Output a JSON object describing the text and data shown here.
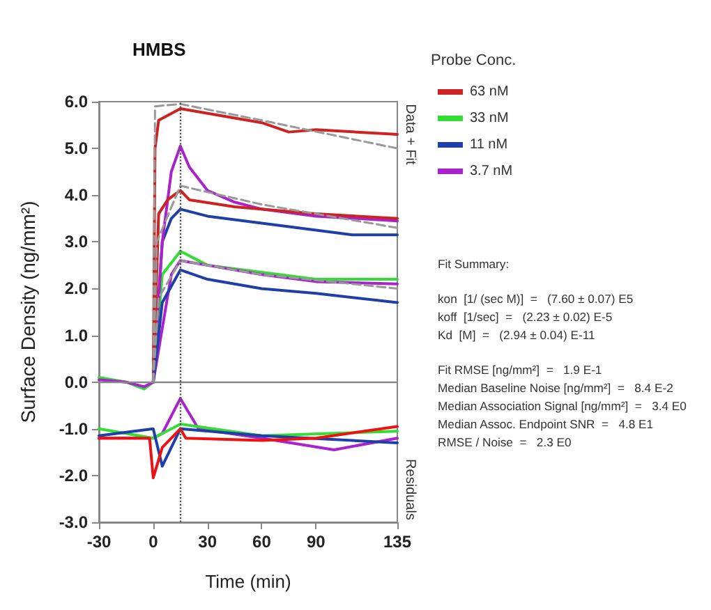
{
  "chart_data": {
    "type": "line",
    "title": "HMBS",
    "xlabel": "Time (min)",
    "ylabel": "Surface Density (ng/mm²)",
    "legend_title": "Probe Conc.",
    "xlim": [
      -30,
      135
    ],
    "xticks": [
      -30,
      0,
      30,
      60,
      90,
      135
    ],
    "ylim": [
      -3,
      6
    ],
    "yticks": [
      {
        "value": -3,
        "label": "-3.0"
      },
      {
        "value": -2,
        "label": "-2.0"
      },
      {
        "value": -1,
        "label": "-1.0"
      },
      {
        "value": 0,
        "label": "0.0"
      },
      {
        "value": 1,
        "label": "1.0"
      },
      {
        "value": 2,
        "label": "2.0"
      },
      {
        "value": 3,
        "label": "3.0"
      },
      {
        "value": 4,
        "label": "4.0"
      },
      {
        "value": 5,
        "label": "5.0"
      },
      {
        "value": 6,
        "label": "6.0"
      }
    ],
    "grid": false,
    "legend": "right",
    "marker": "none",
    "line_style": "solid",
    "ref_lines": [
      {
        "axis": "y",
        "value": 0,
        "color": "#888888",
        "line_style": "solid"
      },
      {
        "axis": "x",
        "value": 15,
        "color": "#555555",
        "line_style": "dotted"
      }
    ],
    "annotations": [
      "Data + Fit",
      "Residuals",
      "Fit Summary:",
      "kon  [1/ (sec M)]  =   (7.60 ± 0.07) E5",
      "koff  [1/sec]  =   (2.23 ± 0.02) E-5",
      "Kd  [M]  =   (2.94 ± 0.04) E-11",
      "Fit RMSE [ng/mm²]  =   1.9 E-1",
      "Median Baseline Noise [ng/mm²]  =   8.4 E-2",
      "Median Association Signal [ng/mm²]  =   3.4 E0",
      "Median Assoc. Endpoint SNR  =   4.8 E1",
      "RMSE / Noise  =   2.3 E0"
    ],
    "series": [
      {
        "name": "63 nM",
        "color": "#cc2222",
        "x": [
          0,
          1,
          3,
          15,
          30,
          60,
          75,
          90,
          135
        ],
        "values": [
          0,
          5.0,
          5.6,
          5.85,
          5.75,
          5.55,
          5.35,
          5.4,
          5.3
        ]
      },
      {
        "name": "33 nM",
        "color": "#33dd33",
        "x": [
          -30,
          -15,
          -5,
          0,
          5,
          15,
          30,
          60,
          90,
          135
        ],
        "values": [
          0.1,
          0,
          -0.15,
          0,
          2.3,
          2.8,
          2.5,
          2.35,
          2.2,
          2.2
        ]
      },
      {
        "name": "11 nM",
        "color": "#1f3fa8",
        "x": [
          0,
          5,
          10,
          15,
          30,
          60,
          90,
          110,
          135
        ],
        "values": [
          0,
          3.0,
          3.5,
          3.7,
          3.55,
          3.4,
          3.25,
          3.15,
          3.15
        ]
      },
      {
        "name": "3.7 nM",
        "color": "#aa22cc",
        "x": [
          -30,
          -15,
          -5,
          0,
          5,
          10,
          15,
          20,
          30,
          45,
          60,
          90,
          135
        ],
        "values": [
          0.05,
          0,
          -0.1,
          0,
          3.0,
          4.5,
          5.05,
          4.6,
          4.1,
          3.85,
          3.7,
          3.55,
          3.45
        ]
      },
      {
        "color": "#cc2222",
        "x": [
          0,
          3,
          8,
          15,
          20,
          45,
          90,
          135
        ],
        "values": [
          0,
          3.6,
          3.9,
          4.1,
          3.9,
          3.75,
          3.6,
          3.5
        ]
      },
      {
        "color": "#aa22cc",
        "x": [
          0,
          10,
          15,
          30,
          60,
          90,
          135
        ],
        "values": [
          0,
          2.3,
          2.6,
          2.5,
          2.3,
          2.15,
          2.1
        ]
      },
      {
        "color": "#1f3fa8",
        "x": [
          0,
          5,
          15,
          30,
          60,
          90,
          135
        ],
        "values": [
          0,
          1.7,
          2.4,
          2.2,
          2.0,
          1.9,
          1.7
        ]
      },
      {
        "color": "#999999",
        "line_style": "dashed",
        "x": [
          0,
          1,
          15,
          60,
          135
        ],
        "values": [
          0,
          5.9,
          5.95,
          5.6,
          5.0
        ]
      },
      {
        "color": "#999999",
        "line_style": "dashed",
        "x": [
          0,
          2,
          15,
          60,
          135
        ],
        "values": [
          0,
          3.0,
          4.2,
          3.8,
          3.3
        ]
      },
      {
        "color": "#999999",
        "line_style": "dashed",
        "x": [
          0,
          3,
          15,
          60,
          135
        ],
        "values": [
          0,
          1.8,
          2.6,
          2.3,
          2.0
        ]
      },
      {
        "color": "#aa22cc",
        "x": [
          -30,
          0,
          5,
          15,
          25,
          60,
          100,
          135
        ],
        "values": [
          -1.2,
          -1.2,
          -1.1,
          -0.35,
          -1.0,
          -1.2,
          -1.45,
          -1.2
        ]
      },
      {
        "color": "#33dd33",
        "x": [
          -30,
          0,
          15,
          60,
          135
        ],
        "values": [
          -1.0,
          -1.2,
          -0.9,
          -1.15,
          -1.05
        ]
      },
      {
        "color": "#1f3fa8",
        "x": [
          -30,
          0,
          5,
          15,
          60,
          135
        ],
        "values": [
          -1.15,
          -1.0,
          -1.8,
          -1.0,
          -1.15,
          -1.3
        ]
      },
      {
        "color": "#ee1111",
        "x": [
          -30,
          -2,
          0,
          5,
          15,
          18,
          60,
          90,
          135
        ],
        "values": [
          -1.2,
          -1.2,
          -2.05,
          -1.4,
          -1.0,
          -1.2,
          -1.25,
          -1.2,
          -0.95
        ]
      }
    ]
  }
}
